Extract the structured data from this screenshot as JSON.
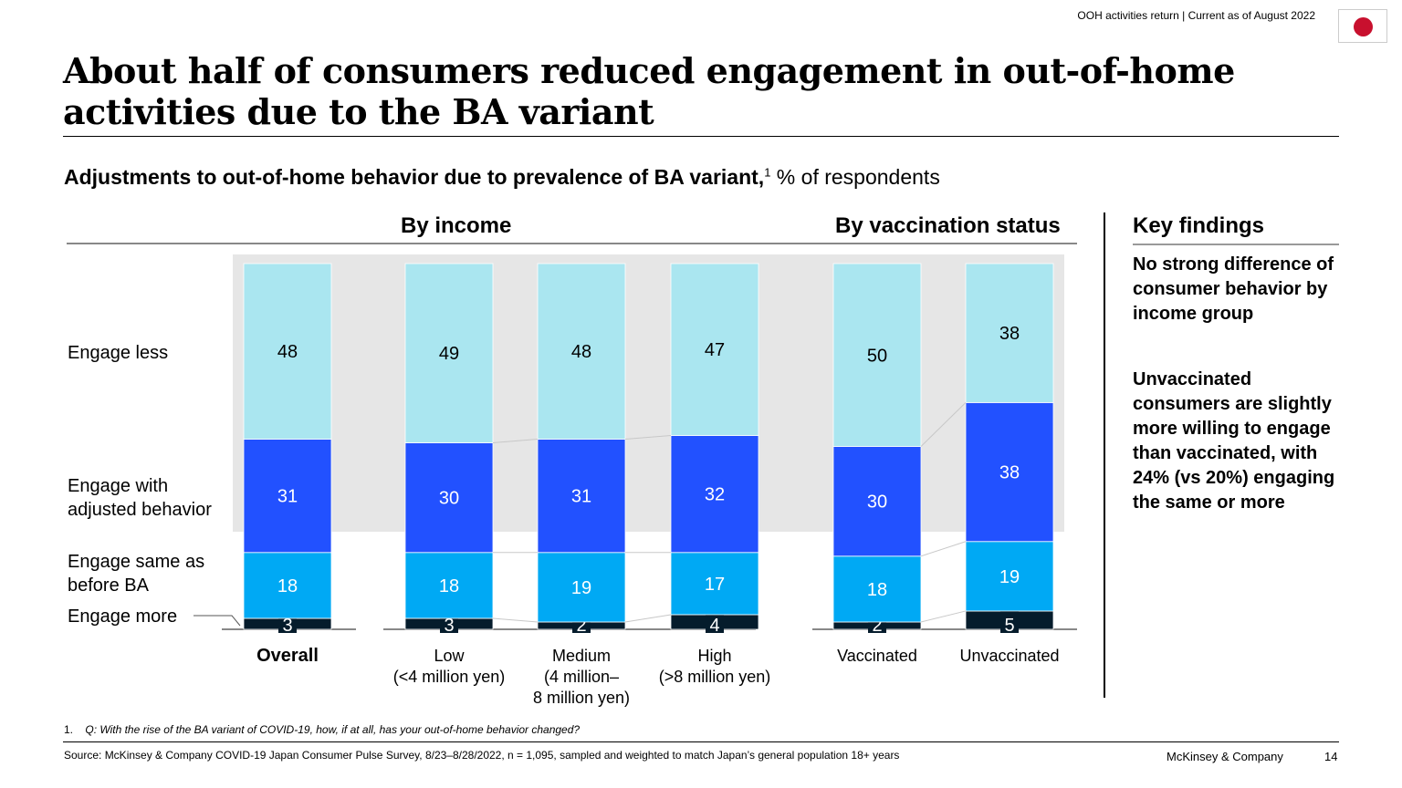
{
  "header": {
    "tracker": "OOH activities return | Current as of August 2022",
    "flag_icon": "japan-flag-icon"
  },
  "title": "About half of consumers reduced engagement in out-of-home activities due to the BA variant",
  "subtitle": {
    "bold": "Adjustments to out-of-home behavior due to prevalence of BA variant,",
    "sup": "1",
    "rest": " % of respondents"
  },
  "group_headers": {
    "income": "By income",
    "vaccination": "By vaccination status"
  },
  "key_findings": {
    "title": "Key findings",
    "items": [
      "No strong difference of consumer behavior by income group",
      "Unvaccinated consumers are slightly more willing to engage than vaccinated, with 24% (vs 20%) engaging the same or more"
    ]
  },
  "chart_data": {
    "type": "bar",
    "stacked": true,
    "percent_stacked": true,
    "categories": [
      "Overall",
      "Low\n(<4 million yen)",
      "Medium\n(4 million–\n8 million yen)",
      "High\n(>8 million yen)",
      "Vaccinated",
      "Unvaccinated"
    ],
    "series": [
      {
        "name": "Engage more",
        "values": [
          3,
          3,
          2,
          4,
          2,
          5
        ],
        "color": "#051c2c"
      },
      {
        "name": "Engage same as before BA",
        "values": [
          18,
          18,
          19,
          17,
          18,
          19
        ],
        "color": "#00a9f4"
      },
      {
        "name": "Engage with adjusted behavior",
        "values": [
          31,
          30,
          31,
          32,
          30,
          38
        ],
        "color": "#2251ff"
      },
      {
        "name": "Engage less",
        "values": [
          48,
          49,
          48,
          47,
          50,
          38
        ],
        "color": "#aae6f0"
      }
    ],
    "ylim": [
      0,
      100
    ],
    "legend": "left"
  },
  "footnote": {
    "num": "1.",
    "text": "Q: With the rise of the BA variant of COVID-19, how, if at all, has your out-of-home behavior changed?"
  },
  "source": "Source: McKinsey & Company COVID-19 Japan Consumer Pulse Survey, 8/23–8/28/2022, n = 1,095, sampled and weighted to match Japan’s general population 18+ years",
  "brand": "McKinsey & Company",
  "page_number": "14"
}
